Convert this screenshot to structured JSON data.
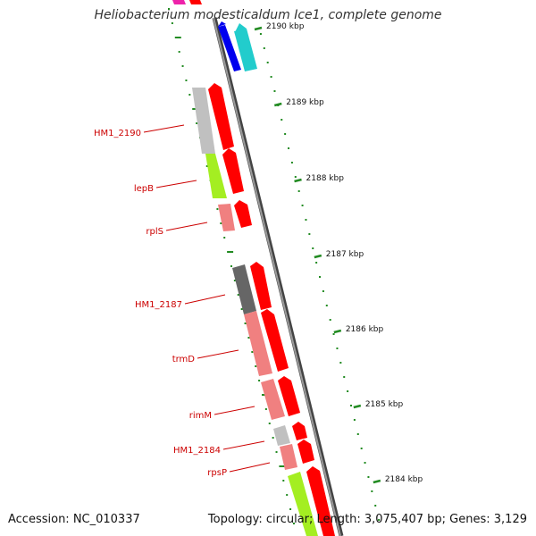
{
  "title": "Heliobacterium modesticaldum Ice1, complete genome",
  "accession": "Accession: NC_010337",
  "topology": "Topology: circular; Length: 3,075,407 bp; Genes: 3,129",
  "colors": {
    "backbone": "#7f7f7f",
    "tick": "#228b22",
    "label": "#cc0000",
    "cds": "#ff0000",
    "blue": "#0000ee",
    "cyan": "#22cccc",
    "grey": "#c0c0c0",
    "darkgrey": "#666666",
    "lime": "#a4ee22",
    "pink": "#f08080",
    "magenta": "#ee22aa"
  },
  "ruler": [
    {
      "label": "2190 kbp"
    },
    {
      "label": "2189 kbp"
    },
    {
      "label": "2188 kbp"
    },
    {
      "label": "2187 kbp"
    },
    {
      "label": "2186 kbp"
    },
    {
      "label": "2185 kbp"
    },
    {
      "label": "2184 kbp"
    }
  ],
  "genes": [
    {
      "name": "HM1_2190"
    },
    {
      "name": "lepB"
    },
    {
      "name": "rplS"
    },
    {
      "name": "HM1_2187"
    },
    {
      "name": "trmD"
    },
    {
      "name": "rimM"
    },
    {
      "name": "HM1_2184"
    },
    {
      "name": "rpsP"
    }
  ]
}
